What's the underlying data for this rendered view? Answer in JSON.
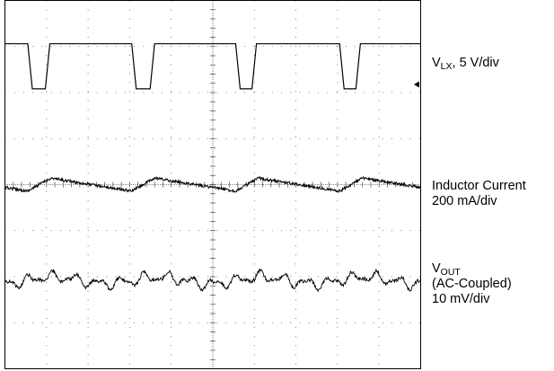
{
  "chart_data": {
    "type": "line",
    "title": "",
    "xlabel": "",
    "ylabel": "",
    "grid": true,
    "divisions": {
      "x": 10,
      "y": 8
    },
    "ylim": [
      0,
      8
    ],
    "series": [
      {
        "name": "VLX, 5 V/div",
        "unit_per_div": "5 V/div",
        "shape": "pulse-train",
        "high_level_div": 7.06,
        "low_level_div": 6.08,
        "pulse_low_intervals_div": [
          [
            0.55,
            1.08
          ],
          [
            3.05,
            3.6
          ],
          [
            5.55,
            6.05
          ],
          [
            8.05,
            8.55
          ]
        ]
      },
      {
        "name": "Inductor Current 200 mA/div",
        "unit_per_div": "200 mA/div",
        "shape": "noisy-triangle",
        "mean_level_div": 4.0,
        "ripple_pp_div": 0.28,
        "ripple_period_div": 2.5
      },
      {
        "name": "VOUT (AC-Coupled) 10 mV/div",
        "unit_per_div": "10 mV/div",
        "shape": "noisy-ripple",
        "mean_level_div": 1.92,
        "ripple_pp_div": 0.3,
        "ripple_period_div": 2.5
      }
    ]
  },
  "labels": {
    "vlx": {
      "main": "V",
      "sub": "LX",
      "rest": ", 5 V/div"
    },
    "current": {
      "line1": "Inductor Current",
      "line2": "200 mA/div"
    },
    "vout": {
      "main": "V",
      "sub": "OUT",
      "line2": "(AC-Coupled)",
      "line3": "10 mV/div"
    }
  },
  "marker": {
    "symbol": "◄",
    "icon": "trigger-level-arrow-icon"
  }
}
